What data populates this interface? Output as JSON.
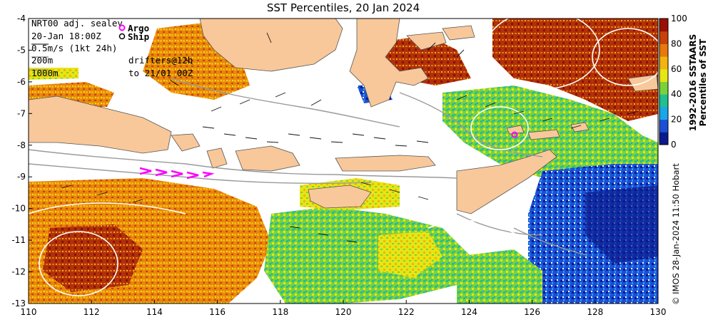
{
  "title": "SST Percentiles, 20 Jan 2024",
  "map": {
    "lon_range": [
      110,
      130
    ],
    "lat_range": [
      -13,
      -4
    ],
    "x_ticks": [
      "110",
      "112",
      "114",
      "116",
      "118",
      "120",
      "122",
      "124",
      "126",
      "128",
      "130"
    ],
    "y_ticks": [
      "-4",
      "-5",
      "-6",
      "-7",
      "-8",
      "-9",
      "-10",
      "-11",
      "-12",
      "-13"
    ]
  },
  "legend": {
    "line1": "NRT00 adj. sealev",
    "line2": "20-Jan 18:00Z",
    "line3": "0.5m/s (1kt 24h)",
    "line4": "200m",
    "line5": "1000m",
    "argo_label": "Argo",
    "ship_label": "Ship",
    "drifters_line1": "drifters@12h",
    "drifters_line2": "to 21/01 00Z",
    "argo_color": "#ff00ff"
  },
  "colorbar": {
    "ticks": [
      "100",
      "80",
      "60",
      "40",
      "20",
      "0"
    ],
    "title_line1": "1992-2016 SSTAARS",
    "title_line2": "Percentiles of SST",
    "colors": [
      "#0a1a8c",
      "#1c4fd6",
      "#1aa6e8",
      "#20c090",
      "#7ad23a",
      "#e6e614",
      "#f3b40d",
      "#e8780a",
      "#c8400a",
      "#9a0f05"
    ]
  },
  "credit": "© IMOS 28-Jan-2024 11:50 Hobart"
}
